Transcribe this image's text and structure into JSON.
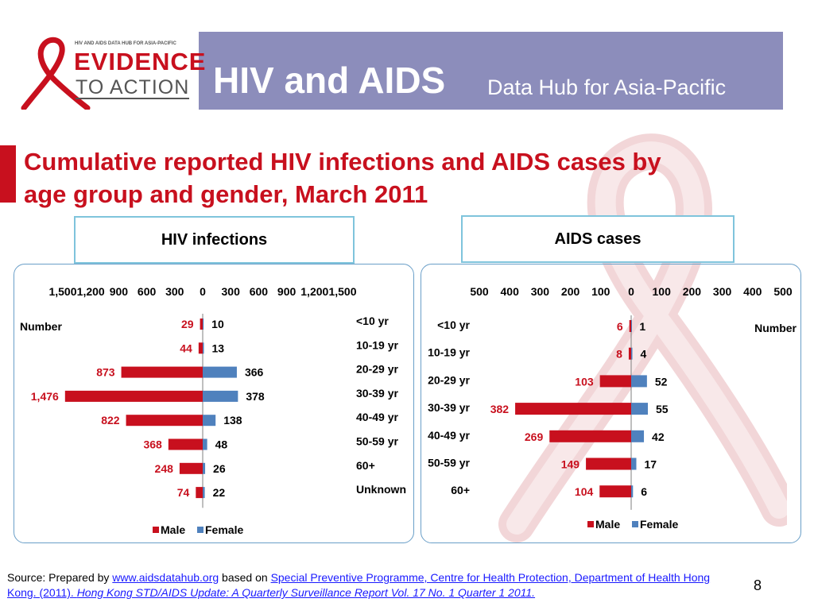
{
  "header": {
    "logo_top": "HIV AND AIDS DATA HUB FOR ASIA-PACIFIC",
    "logo_line1": "EVIDENCE",
    "logo_line2": "TO ACTION",
    "title_main": "HIV and AIDS",
    "title_sub": "Data Hub for Asia-Pacific"
  },
  "slide_title_line1": "Cumulative reported HIV infections and AIDS cases by",
  "slide_title_line2": "age group and gender, March 2011",
  "colors": {
    "male": "#c8101e",
    "female": "#4f81bd",
    "banner": "#8c8dbb",
    "accent": "#c8101e",
    "panel_border": "#6a9fc8"
  },
  "chart_data": [
    {
      "type": "bar",
      "title": "HIV infections",
      "orientation": "horizontal-butterfly",
      "ylabel": "Number",
      "categories": [
        "<10 yr",
        "10-19 yr",
        "20-29 yr",
        "30-39 yr",
        "40-49 yr",
        "50-59 yr",
        "60+",
        "Unknown"
      ],
      "series": [
        {
          "name": "Male",
          "values": [
            29,
            44,
            873,
            1476,
            822,
            368,
            248,
            74
          ]
        },
        {
          "name": "Female",
          "values": [
            10,
            13,
            366,
            378,
            138,
            48,
            26,
            22
          ]
        }
      ],
      "xlim": [
        -1500,
        1500
      ],
      "xticks": [
        "1,500",
        "1,200",
        "900",
        "600",
        "300",
        "0",
        "300",
        "600",
        "900",
        "1,200",
        "1,500"
      ],
      "legend": "bottom"
    },
    {
      "type": "bar",
      "title": "AIDS cases",
      "orientation": "horizontal-butterfly",
      "ylabel": "Number",
      "categories": [
        "<10 yr",
        "10-19 yr",
        "20-29 yr",
        "30-39 yr",
        "40-49 yr",
        "50-59 yr",
        "60+"
      ],
      "series": [
        {
          "name": "Male",
          "values": [
            6,
            8,
            103,
            382,
            269,
            149,
            104
          ]
        },
        {
          "name": "Female",
          "values": [
            1,
            4,
            52,
            55,
            42,
            17,
            6
          ]
        }
      ],
      "xlim": [
        -500,
        500
      ],
      "xticks": [
        "500",
        "400",
        "300",
        "200",
        "100",
        "0",
        "100",
        "200",
        "300",
        "400",
        "500"
      ],
      "legend": "bottom"
    }
  ],
  "source": {
    "prefix": "Source: Prepared by ",
    "link1": "www.aidsdatahub.org",
    "middle": "  based on ",
    "link2": "Special Preventive Programme, Centre for Health Protection, Department of Health Hong Kong. (2011). ",
    "link3": "Hong Kong STD/AIDS Update: A Quarterly Surveillance Report Vol. 17 No. 1 Quarter 1 2011."
  },
  "page_number": "8"
}
